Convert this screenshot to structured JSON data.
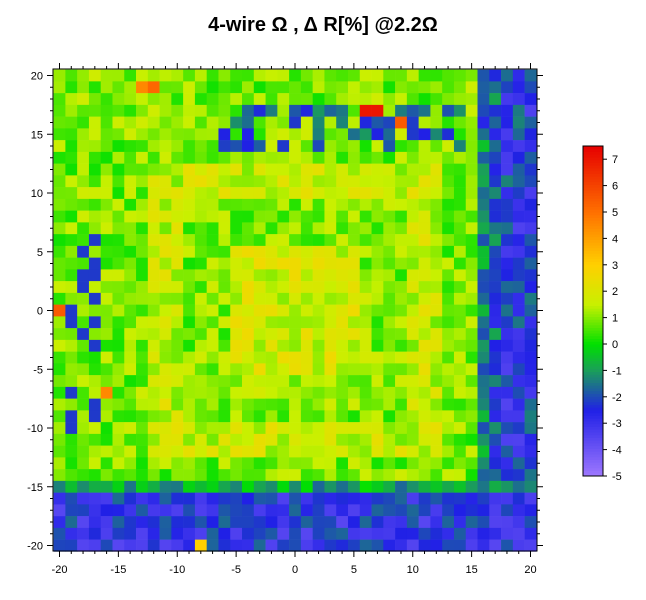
{
  "chart_data": {
    "type": "heatmap",
    "title": "4-wire Ω , Δ  R[%] @2.2Ω",
    "xlabel": "",
    "ylabel": "",
    "xlim": [
      -20.5,
      20.5
    ],
    "ylim": [
      -20.5,
      20.5
    ],
    "x_ticks": [
      "-20",
      "-15",
      "-10",
      "-5",
      "0",
      "5",
      "10",
      "15",
      "20"
    ],
    "y_ticks": [
      "20",
      "15",
      "10",
      "5",
      "0",
      "-5",
      "-10",
      "-15",
      "-20"
    ],
    "grid": false,
    "cell_size": 1,
    "colorbar": {
      "min": -5,
      "max": 7.5,
      "ticks": [
        "7",
        "6",
        "5",
        "4",
        "3",
        "2",
        "1",
        "0",
        "-1",
        "-2",
        "-3",
        "-4",
        "-5"
      ],
      "colors": [
        "#9f78ff",
        "#2020e6",
        "#1a9e5a",
        "#00e000",
        "#c8f000",
        "#ffd000",
        "#ff7000",
        "#e60000"
      ],
      "stops": [
        -5,
        -2.5,
        -1,
        0,
        1.5,
        3,
        5,
        7.5
      ]
    },
    "description_of_values": "Cell-wise resistance change in percent over a 41x41 grid from x=-20..20, y=-20..20; center region around +1..+2.5, a ring at +1.5 near |r|=11, strong negative (blue) band along right edge x>=16 and bottom rows y<=-16, hot spots up to +7 near (7,17), (-12,19), (-20,0)."
  }
}
